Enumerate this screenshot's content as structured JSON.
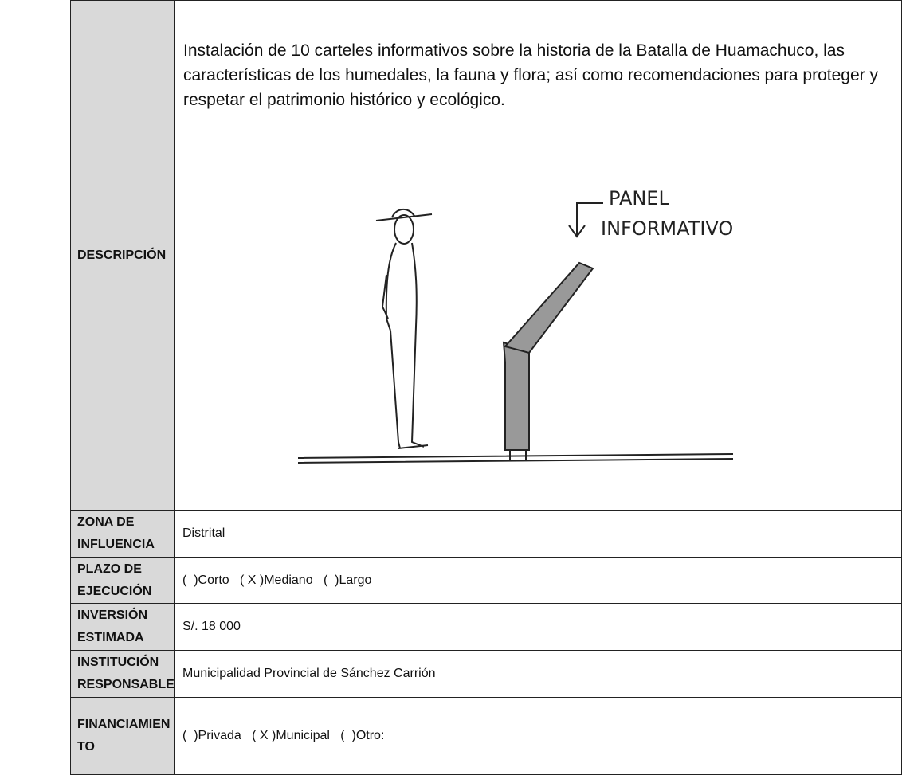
{
  "description": {
    "label": "DESCRIPCIÓN",
    "text": "Instalación de 10 carteles informativos sobre la historia de la Batalla de Huamachuco, las características de los humedales, la fauna y flora; así como recomendaciones para proteger y respetar el patrimonio histórico y ecológico.",
    "sketch_labels": [
      "PANEL",
      "INFORMATIVO"
    ]
  },
  "rows": [
    {
      "label_lines": [
        "ZONA DE",
        "INFLUENCIA"
      ],
      "value": "Distrital"
    },
    {
      "label_lines": [
        "PLAZO DE",
        "EJECUCIÓN"
      ],
      "value": "(  )Corto   ( X )Mediano   (  )Largo"
    },
    {
      "label_lines": [
        "INVERSIÓN",
        "ESTIMADA"
      ],
      "value": "S/. 18 000"
    },
    {
      "label_lines": [
        "INSTITUCIÓN",
        "RESPONSABLE"
      ],
      "value": "Municipalidad Provincial de Sánchez Carrión"
    },
    {
      "label_lines": [
        "FINANCIAMIEN",
        "TO"
      ],
      "value": "(  )Privada   ( X )Municipal   (  )Otro:"
    }
  ]
}
